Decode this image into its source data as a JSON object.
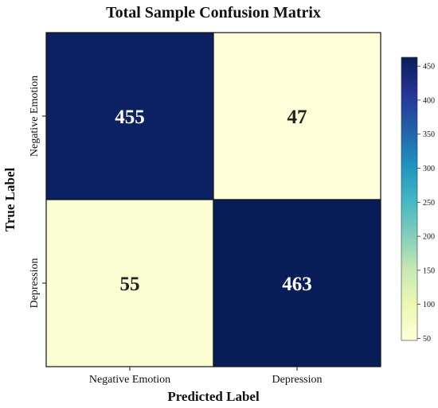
{
  "chart_data": {
    "type": "heatmap",
    "title": "Total Sample Confusion Matrix",
    "xlabel": "Predicted Label",
    "ylabel": "True Label",
    "x_categories": [
      "Negative Emotion",
      "Depression"
    ],
    "y_categories": [
      "Negative Emotion",
      "Depression"
    ],
    "values": [
      [
        455,
        47
      ],
      [
        55,
        463
      ]
    ],
    "value_labels": [
      "455",
      "47",
      "55",
      "463"
    ],
    "colorbar": {
      "range": [
        47,
        463
      ],
      "ticks": [
        50,
        100,
        150,
        200,
        250,
        300,
        350,
        400,
        450
      ],
      "tick_labels": [
        "50",
        "100",
        "150",
        "200",
        "250",
        "300",
        "350",
        "400",
        "450"
      ],
      "colormap": "YlGnBu",
      "colormap_stops": [
        "#ffffd9",
        "#edf8b1",
        "#c7e9b4",
        "#7fcdbb",
        "#41b6c4",
        "#1d91c0",
        "#225ea8",
        "#253494",
        "#081d58"
      ]
    }
  }
}
